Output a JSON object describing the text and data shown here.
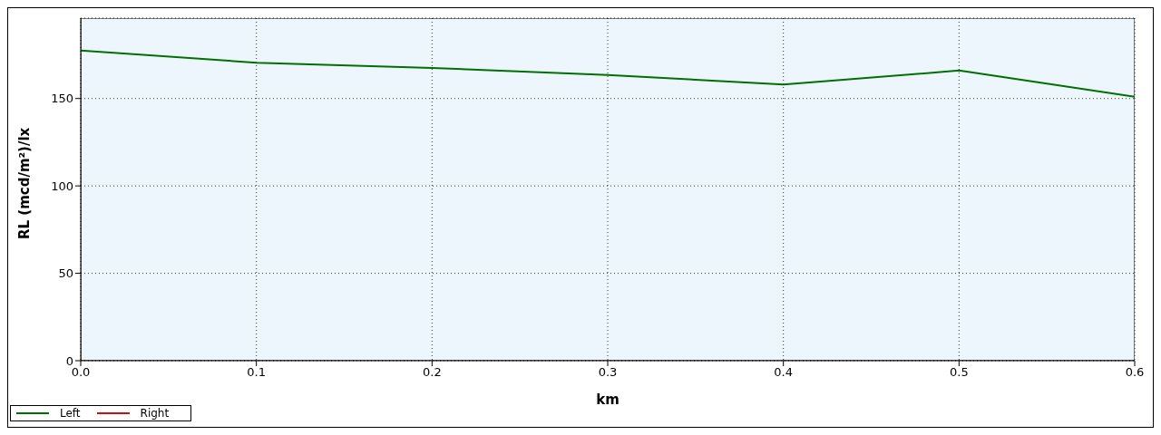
{
  "chart_data": {
    "type": "line",
    "xlabel": "km",
    "ylabel": "RL (mcd/m²)/lx",
    "x": [
      0,
      0.1,
      0.2,
      0.3,
      0.4,
      0.5,
      0.6
    ],
    "series": [
      {
        "name": "Left",
        "color": "#007000",
        "values": [
          177.5,
          170.5,
          167.5,
          163.5,
          158,
          166,
          151
        ]
      },
      {
        "name": "Right",
        "color": "#cc1010",
        "values": [
          null,
          null,
          null,
          null,
          null,
          null,
          null
        ]
      }
    ],
    "xlim": [
      0,
      0.6
    ],
    "xticks": [
      {
        "value": 0,
        "label": "0.0"
      },
      0.1,
      0.2,
      0.3,
      0.4,
      0.5,
      0.6
    ],
    "ylim": [
      0,
      196
    ],
    "yticks": [
      0,
      50,
      100,
      150
    ],
    "grid": true,
    "legend": "bottom left",
    "marker": "none",
    "line_style": "solid"
  }
}
